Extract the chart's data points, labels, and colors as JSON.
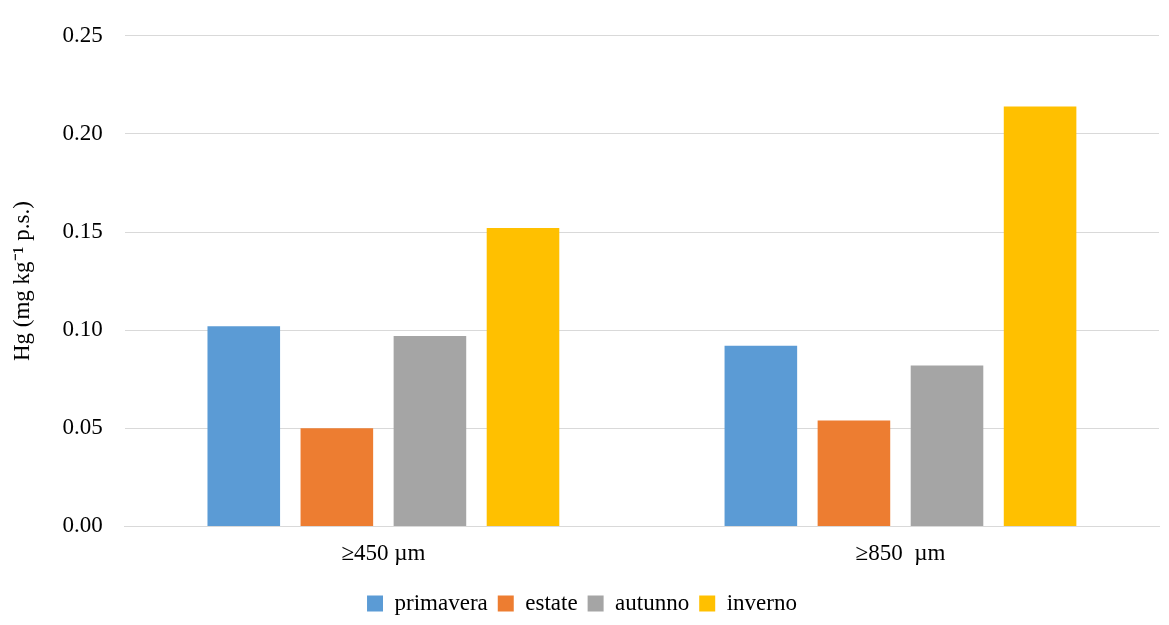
{
  "chart_data": {
    "type": "bar",
    "ylabel": "Hg (mg kg⁻¹ p.s.)",
    "categories": [
      "≥450 µm",
      "≥850  µm"
    ],
    "series": [
      {
        "name": "primavera",
        "color": "#5b9bd5",
        "values": [
          0.102,
          0.092
        ]
      },
      {
        "name": "estate",
        "color": "#ed7d31",
        "values": [
          0.05,
          0.054
        ]
      },
      {
        "name": "autunno",
        "color": "#a5a5a5",
        "values": [
          0.097,
          0.082
        ]
      },
      {
        "name": "inverno",
        "color": "#ffc000",
        "values": [
          0.152,
          0.214
        ]
      }
    ],
    "ylim": [
      0,
      0.25
    ],
    "yticks": [
      {
        "value": 0,
        "label": "0.00"
      },
      {
        "value": 0.05,
        "label": "0.05"
      },
      {
        "value": 0.1,
        "label": "0.10"
      },
      {
        "value": 0.15,
        "label": "0.15"
      },
      {
        "value": 0.2,
        "label": "0.20"
      },
      {
        "value": 0.25,
        "label": "0.25"
      }
    ],
    "grid": "y",
    "legend": "bottom"
  }
}
